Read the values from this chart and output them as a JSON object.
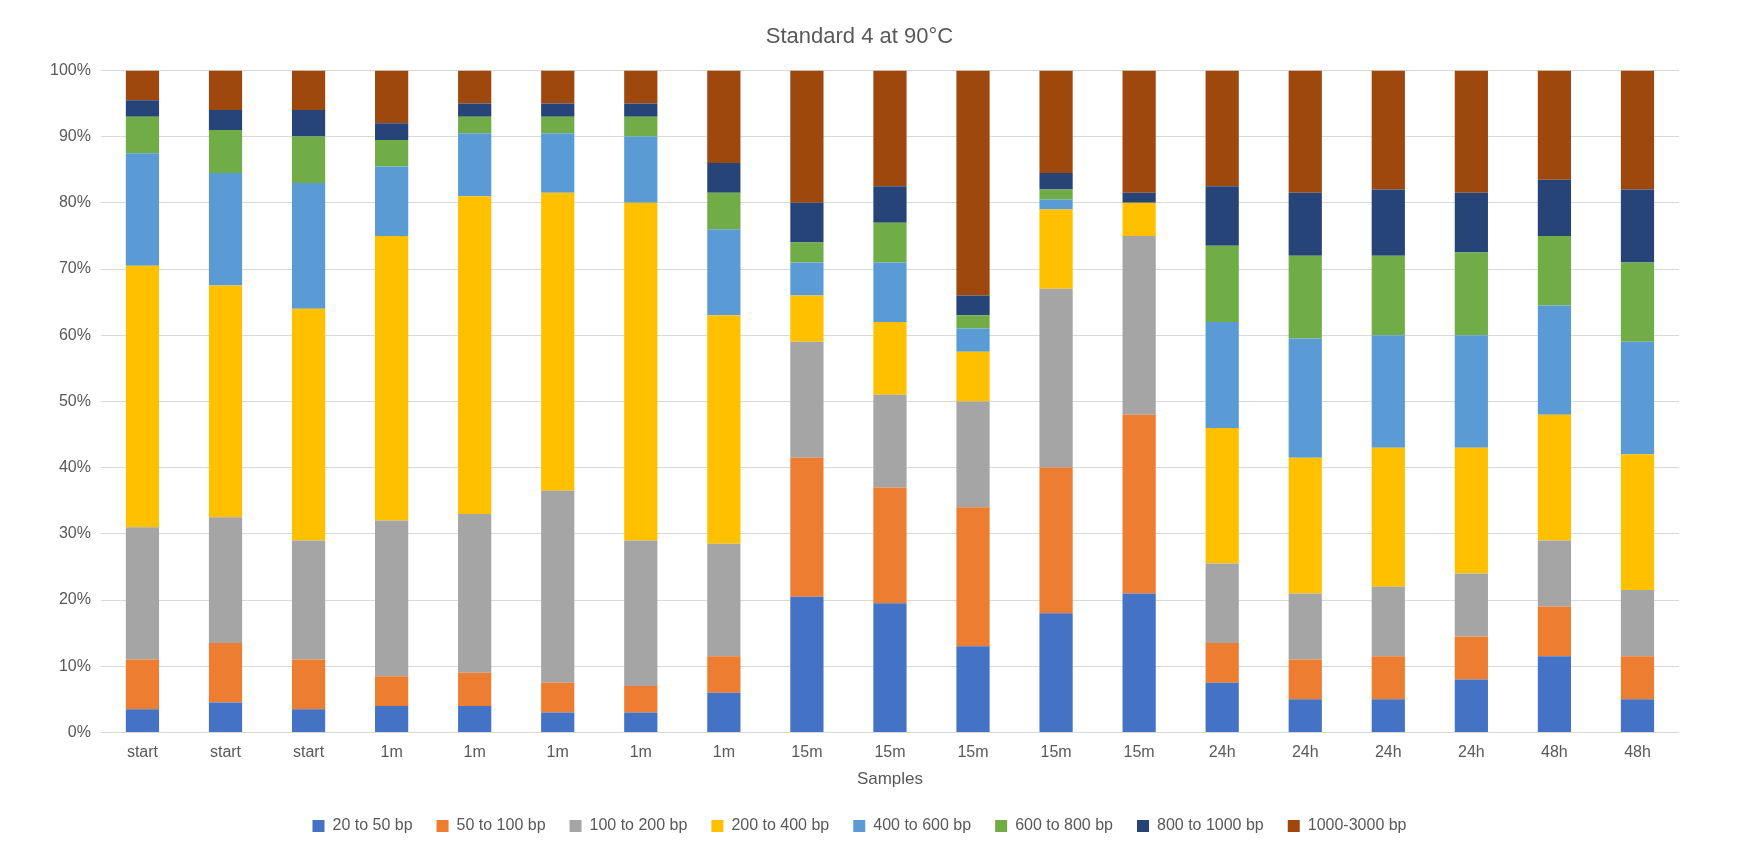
{
  "chart_data": {
    "type": "bar",
    "title": "Standard 4 at 90°C",
    "xlabel": "Samples",
    "stacked": true,
    "grid": "y",
    "legend": "bottom",
    "categories": [
      "start",
      "start",
      "start",
      "1m",
      "1m",
      "1m",
      "1m",
      "1m",
      "15m",
      "15m",
      "15m",
      "15m",
      "15m",
      "24h",
      "24h",
      "24h",
      "24h",
      "48h",
      "48h"
    ],
    "ylim": [
      0,
      100
    ],
    "yticks": [
      {
        "value": 0,
        "label": "0%"
      },
      {
        "value": 10,
        "label": "10%"
      },
      {
        "value": 20,
        "label": "20%"
      },
      {
        "value": 30,
        "label": "30%"
      },
      {
        "value": 40,
        "label": "40%"
      },
      {
        "value": 50,
        "label": "50%"
      },
      {
        "value": 60,
        "label": "60%"
      },
      {
        "value": 70,
        "label": "70%"
      },
      {
        "value": 80,
        "label": "80%"
      },
      {
        "value": 90,
        "label": "90%"
      },
      {
        "value": 100,
        "label": "100%"
      }
    ],
    "series": [
      {
        "name": "20 to 50 bp",
        "color": "#4472c4",
        "values": [
          3.5,
          4.5,
          3.5,
          4,
          4,
          3,
          3,
          6,
          20.5,
          19.5,
          13,
          18,
          21,
          7.5,
          5,
          5,
          8,
          11.5,
          5
        ]
      },
      {
        "name": "50 to 100 bp",
        "color": "#ed7d31",
        "values": [
          7.5,
          9,
          7.5,
          4.5,
          5,
          4.5,
          4,
          5.5,
          21,
          17.5,
          21,
          22,
          27,
          6,
          6,
          6.5,
          6.5,
          7.5,
          6.5
        ]
      },
      {
        "name": "100 to 200 bp",
        "color": "#a5a5a5",
        "values": [
          20,
          19,
          18,
          23.5,
          24,
          29,
          22,
          17,
          17.5,
          14,
          16,
          27,
          27,
          12,
          10,
          10.5,
          9.5,
          10,
          10
        ]
      },
      {
        "name": "200 to 400 bp",
        "color": "#ffc000",
        "values": [
          39.5,
          35,
          35,
          43,
          48,
          45,
          51,
          34.5,
          7,
          11,
          7.5,
          12,
          5,
          20.5,
          20.5,
          21,
          19,
          19,
          20.5
        ]
      },
      {
        "name": "400 to 600 bp",
        "color": "#5b9bd5",
        "values": [
          17,
          17,
          19,
          10.5,
          9.5,
          9,
          10,
          13,
          5,
          9,
          3.5,
          1.5,
          0,
          16,
          18,
          17,
          17,
          16.5,
          17
        ]
      },
      {
        "name": "600 to 800 bp",
        "color": "#70ad47",
        "values": [
          5.5,
          6.5,
          7,
          4,
          2.5,
          2.5,
          3,
          5.5,
          3,
          6,
          2,
          1.5,
          0,
          11.5,
          12.5,
          12,
          12.5,
          10.5,
          12
        ]
      },
      {
        "name": "800 to 1000 bp",
        "color": "#264478",
        "values": [
          2.5,
          3,
          4,
          2.5,
          2,
          2,
          2,
          4.5,
          6,
          5.5,
          3,
          2.5,
          1.5,
          9,
          9.5,
          10,
          9,
          8.5,
          11
        ]
      },
      {
        "name": "1000-3000 bp",
        "color": "#9e480e",
        "values": [
          4.5,
          6,
          6,
          8,
          5,
          5,
          5,
          14,
          20,
          17.5,
          34,
          15.5,
          18.5,
          17.5,
          18.5,
          18,
          18.5,
          16.5,
          18
        ]
      }
    ]
  }
}
